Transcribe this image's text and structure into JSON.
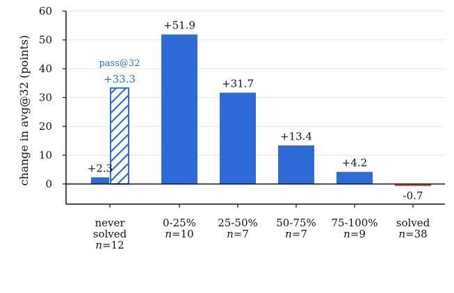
{
  "chart_data": {
    "type": "bar",
    "ylabel": "change in avg@32 (points)",
    "xlabel": "",
    "title": "",
    "ylim": [
      -7,
      60
    ],
    "yticks": [
      0,
      10,
      20,
      30,
      40,
      50,
      60
    ],
    "grid": true,
    "categories": [
      {
        "lines": [
          "never",
          "solved",
          "n=12"
        ],
        "n_prefix": "n",
        "n_value": "12"
      },
      {
        "lines": [
          "0-25%",
          "n=10"
        ],
        "n_prefix": "n",
        "n_value": "10"
      },
      {
        "lines": [
          "25-50%",
          "n=7"
        ],
        "n_prefix": "n",
        "n_value": "7"
      },
      {
        "lines": [
          "50-75%",
          "n=7"
        ],
        "n_prefix": "n",
        "n_value": "7"
      },
      {
        "lines": [
          "75-100%",
          "n=9"
        ],
        "n_prefix": "n",
        "n_value": "9"
      },
      {
        "lines": [
          "solved",
          "n=38"
        ],
        "n_prefix": "n",
        "n_value": "38"
      }
    ],
    "values": [
      2.3,
      51.9,
      31.7,
      13.4,
      4.2,
      -0.7
    ],
    "value_labels": [
      "+2.3",
      "+51.9",
      "+31.7",
      "+13.4",
      "+4.2",
      "-0.7"
    ],
    "bar_colors": [
      "#2f6bd6",
      "#2f6bd6",
      "#2f6bd6",
      "#2f6bd6",
      "#2f6bd6",
      "#c0503a"
    ],
    "pass_bar": {
      "category_index": 0,
      "value": 33.3,
      "label": "+33.3",
      "annotation": "pass@32",
      "color": "#2f6bd6",
      "hatch": "diagonal"
    }
  }
}
